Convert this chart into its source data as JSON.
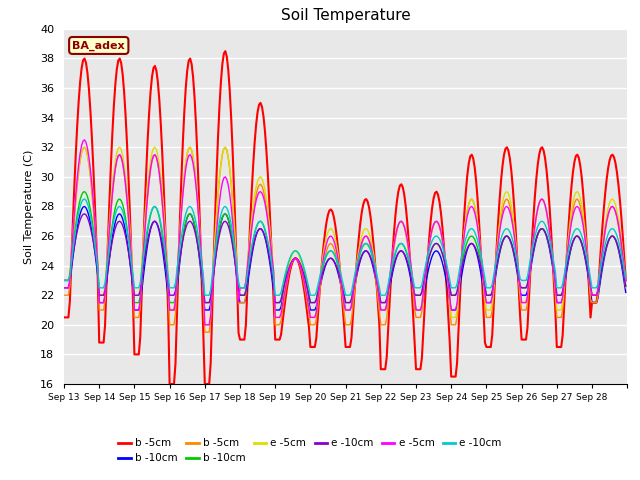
{
  "title": "Soil Temperature",
  "ylabel": "Soil Temperature (C)",
  "xlabel": "",
  "ylim": [
    16,
    40
  ],
  "yticks": [
    16,
    18,
    20,
    22,
    24,
    26,
    28,
    30,
    32,
    34,
    36,
    38,
    40
  ],
  "background_color": "#e8e8e8",
  "annotation_text": "BA_adex",
  "annotation_color": "#8b0000",
  "annotation_bg": "#ffffcc",
  "annotation_border": "#8b0000",
  "series": [
    {
      "label": "b -5cm",
      "color": "#ff0000",
      "lw": 1.5
    },
    {
      "label": "b -10cm",
      "color": "#0000ff",
      "lw": 1.0
    },
    {
      "label": "b -5cm",
      "color": "#ff8800",
      "lw": 1.0
    },
    {
      "label": "b -10cm",
      "color": "#00cc00",
      "lw": 1.0
    },
    {
      "label": "e -5cm",
      "color": "#dddd00",
      "lw": 1.0
    },
    {
      "label": "e -10cm",
      "color": "#8800cc",
      "lw": 1.0
    },
    {
      "label": "e -5cm",
      "color": "#ff00ff",
      "lw": 1.0
    },
    {
      "label": "e -10cm",
      "color": "#00cccc",
      "lw": 1.0
    }
  ],
  "x_labels": [
    "Sep 13",
    "Sep 14",
    "Sep 15",
    "Sep 16",
    "Sep 17",
    "Sep 18",
    "Sep 19",
    "Sep 20",
    "Sep 21",
    "Sep 22",
    "Sep 23",
    "Sep 24",
    "Sep 25",
    "Sep 26",
    "Sep 27",
    "Sep 28"
  ],
  "num_days": 16
}
